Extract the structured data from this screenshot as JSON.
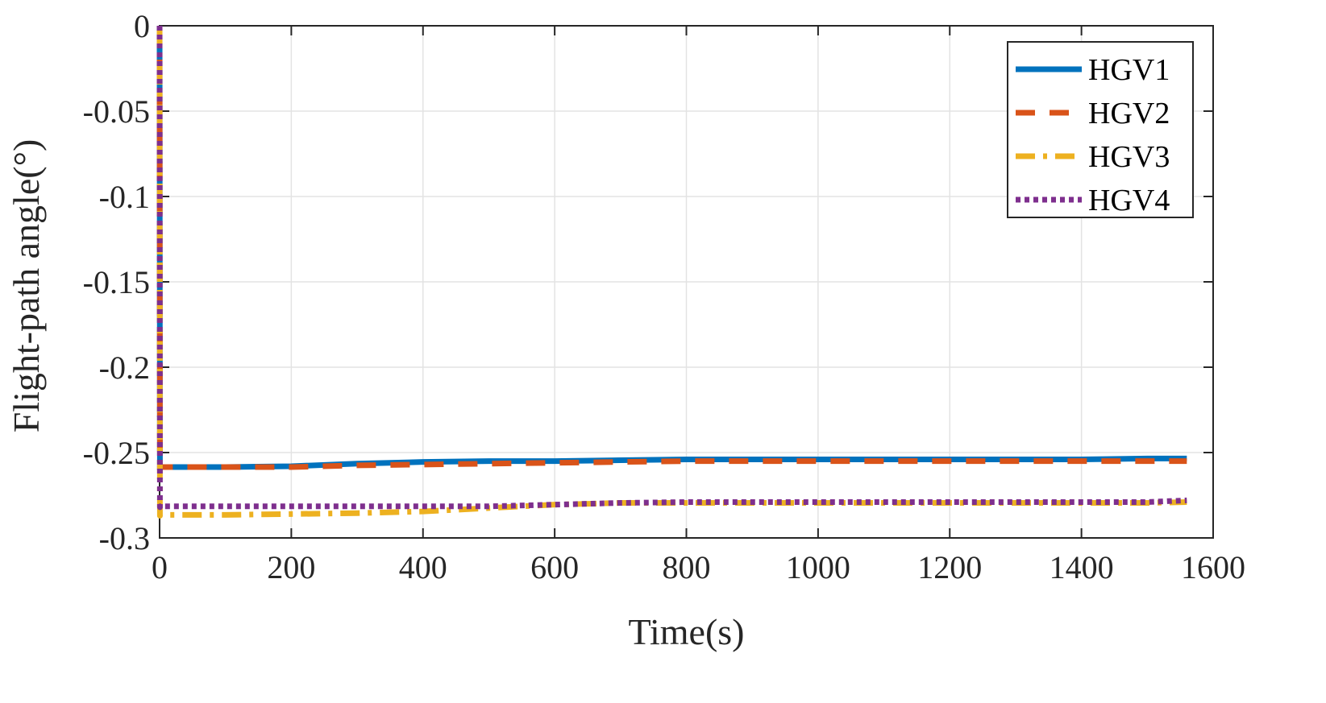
{
  "chart_data": {
    "type": "line",
    "title": "",
    "xlabel": "Time(s)",
    "ylabel": "Flight-path angle(°)",
    "xlim": [
      0,
      1600
    ],
    "ylim": [
      -0.3,
      0
    ],
    "xticks": [
      0,
      200,
      400,
      600,
      800,
      1000,
      1200,
      1400,
      1600
    ],
    "yticks": [
      0,
      -0.05,
      -0.1,
      -0.15,
      -0.2,
      -0.25,
      -0.3
    ],
    "xtick_labels": [
      "0",
      "200",
      "400",
      "600",
      "800",
      "1000",
      "1200",
      "1400",
      "1600"
    ],
    "ytick_labels": [
      "0",
      "-0.05",
      "-0.1",
      "-0.15",
      "-0.2",
      "-0.25",
      "-0.3"
    ],
    "grid": true,
    "legend_position": "top-right",
    "series": [
      {
        "name": "HGV1",
        "color": "#0072BD",
        "style": "solid",
        "x": [
          0,
          0.5,
          1,
          100,
          200,
          300,
          400,
          500,
          600,
          700,
          800,
          900,
          1000,
          1100,
          1200,
          1300,
          1400,
          1500,
          1560
        ],
        "y": [
          0,
          -0.26,
          -0.2585,
          -0.2585,
          -0.258,
          -0.2565,
          -0.2555,
          -0.255,
          -0.255,
          -0.2545,
          -0.254,
          -0.254,
          -0.254,
          -0.254,
          -0.254,
          -0.254,
          -0.254,
          -0.2535,
          -0.2535
        ]
      },
      {
        "name": "HGV2",
        "color": "#D95319",
        "style": "dashed",
        "x": [
          0,
          0.5,
          1,
          100,
          200,
          300,
          400,
          500,
          600,
          700,
          800,
          900,
          1000,
          1100,
          1200,
          1300,
          1400,
          1500,
          1560
        ],
        "y": [
          0,
          -0.26,
          -0.2585,
          -0.2585,
          -0.2585,
          -0.2575,
          -0.257,
          -0.2565,
          -0.256,
          -0.2555,
          -0.255,
          -0.255,
          -0.255,
          -0.255,
          -0.255,
          -0.255,
          -0.255,
          -0.255,
          -0.255
        ]
      },
      {
        "name": "HGV3",
        "color": "#EDB120",
        "style": "dashdot",
        "x": [
          0,
          0.5,
          1,
          100,
          200,
          300,
          400,
          500,
          600,
          700,
          800,
          900,
          1000,
          1100,
          1200,
          1300,
          1400,
          1500,
          1560
        ],
        "y": [
          0,
          -0.287,
          -0.2865,
          -0.2865,
          -0.286,
          -0.2855,
          -0.2845,
          -0.2825,
          -0.2805,
          -0.2795,
          -0.2795,
          -0.2795,
          -0.2795,
          -0.2795,
          -0.2795,
          -0.2795,
          -0.2795,
          -0.2795,
          -0.279
        ]
      },
      {
        "name": "HGV4",
        "color": "#7E2F8E",
        "style": "dotted",
        "x": [
          0,
          0.5,
          1,
          100,
          200,
          300,
          400,
          500,
          600,
          700,
          800,
          900,
          1000,
          1100,
          1200,
          1300,
          1400,
          1500,
          1560
        ],
        "y": [
          0,
          -0.282,
          -0.2815,
          -0.2815,
          -0.2815,
          -0.2815,
          -0.2815,
          -0.2815,
          -0.2805,
          -0.2795,
          -0.279,
          -0.279,
          -0.279,
          -0.279,
          -0.279,
          -0.279,
          -0.279,
          -0.279,
          -0.278
        ]
      }
    ]
  }
}
